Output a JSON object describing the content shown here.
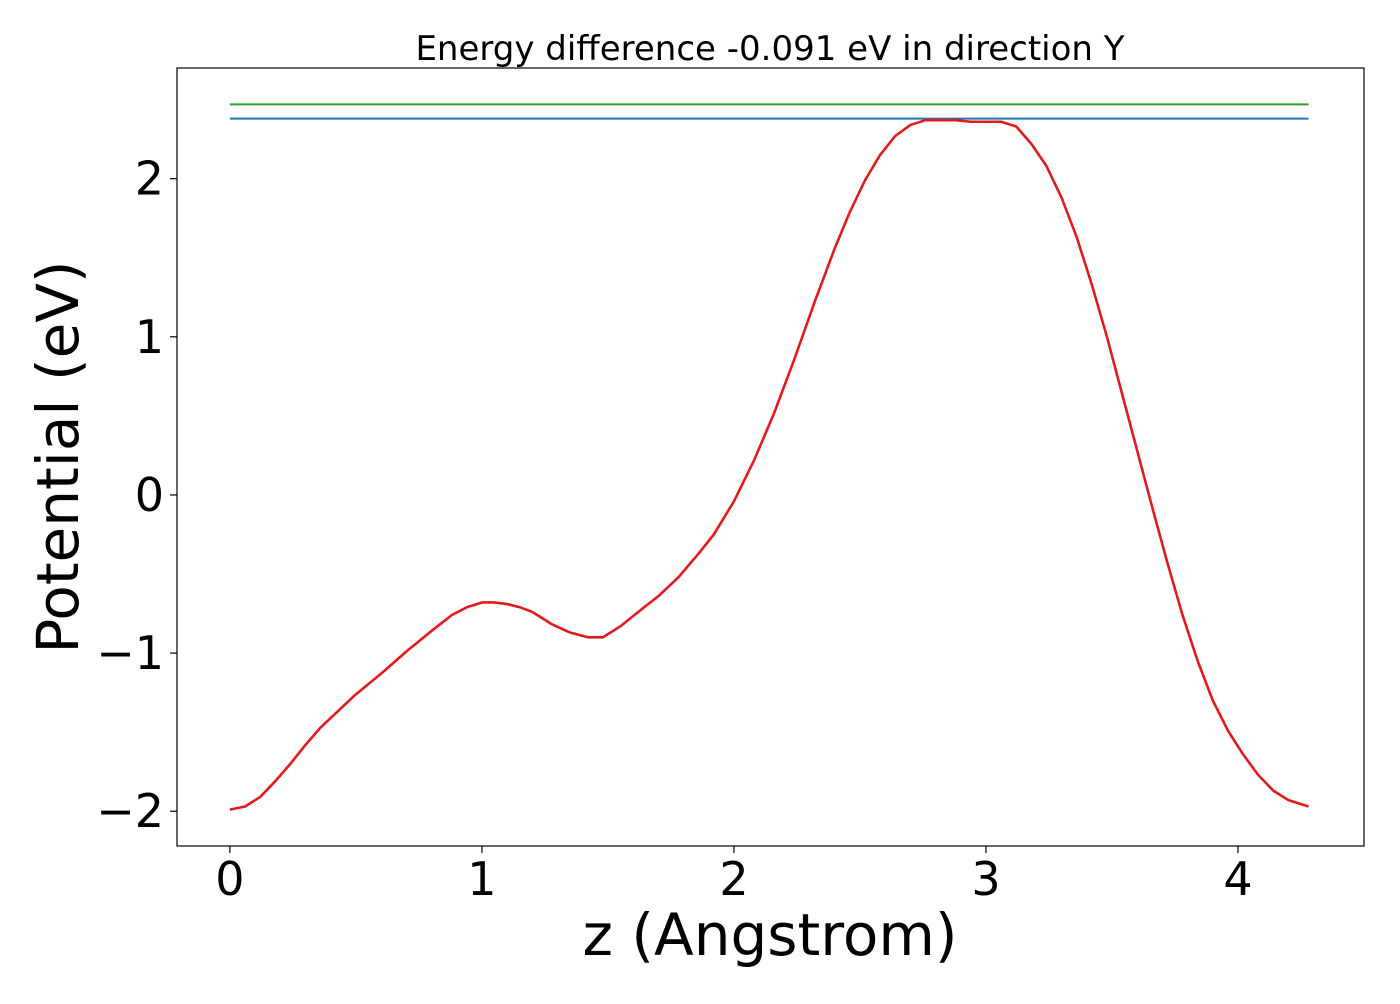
{
  "chart_data": {
    "type": "line",
    "title": "Energy difference -0.091 eV in direction Y",
    "xlabel": "z (Angstrom)",
    "ylabel": "Potential (eV)",
    "xlim": [
      -0.21,
      4.5
    ],
    "ylim": [
      -2.22,
      2.7
    ],
    "grid": false,
    "x_ticks": [
      {
        "value": 0,
        "label": "0"
      },
      {
        "value": 1,
        "label": "1"
      },
      {
        "value": 2,
        "label": "2"
      },
      {
        "value": 3,
        "label": "3"
      },
      {
        "value": 4,
        "label": "4"
      }
    ],
    "y_ticks": [
      {
        "value": -2,
        "label": "−2"
      },
      {
        "value": -1,
        "label": "−1"
      },
      {
        "value": 0,
        "label": "0"
      },
      {
        "value": 1,
        "label": "1"
      },
      {
        "value": 2,
        "label": "2"
      }
    ],
    "series": [
      {
        "color": "#2ca02c",
        "x": [
          0,
          4.28
        ],
        "y": [
          2.47,
          2.47
        ]
      },
      {
        "color": "#1f77b4",
        "x": [
          0,
          4.28
        ],
        "y": [
          2.38,
          2.38
        ]
      },
      {
        "color": "#e31a1c",
        "x": [
          0,
          0.06,
          0.12,
          0.18,
          0.24,
          0.3,
          0.36,
          0.42,
          0.5,
          0.6,
          0.7,
          0.8,
          0.88,
          0.94,
          1.0,
          1.05,
          1.1,
          1.15,
          1.2,
          1.28,
          1.35,
          1.42,
          1.48,
          1.55,
          1.62,
          1.7,
          1.78,
          1.86,
          1.92,
          2.0,
          2.08,
          2.16,
          2.24,
          2.32,
          2.4,
          2.46,
          2.52,
          2.58,
          2.64,
          2.7,
          2.76,
          2.82,
          2.88,
          2.94,
          3.0,
          3.06,
          3.12,
          3.18,
          3.24,
          3.3,
          3.36,
          3.42,
          3.48,
          3.54,
          3.6,
          3.66,
          3.72,
          3.78,
          3.84,
          3.9,
          3.96,
          4.02,
          4.08,
          4.14,
          4.2,
          4.28
        ],
        "y": [
          -1.99,
          -1.97,
          -1.91,
          -1.81,
          -1.7,
          -1.58,
          -1.47,
          -1.38,
          -1.26,
          -1.13,
          -0.99,
          -0.86,
          -0.76,
          -0.71,
          -0.68,
          -0.68,
          -0.69,
          -0.71,
          -0.74,
          -0.82,
          -0.87,
          -0.9,
          -0.9,
          -0.83,
          -0.74,
          -0.64,
          -0.52,
          -0.37,
          -0.25,
          -0.04,
          0.22,
          0.52,
          0.86,
          1.22,
          1.56,
          1.79,
          1.99,
          2.15,
          2.27,
          2.34,
          2.37,
          2.37,
          2.37,
          2.36,
          2.36,
          2.36,
          2.33,
          2.22,
          2.08,
          1.88,
          1.63,
          1.33,
          1.0,
          0.64,
          0.28,
          -0.08,
          -0.43,
          -0.76,
          -1.05,
          -1.3,
          -1.49,
          -1.64,
          -1.77,
          -1.87,
          -1.93,
          -1.97
        ]
      }
    ]
  }
}
